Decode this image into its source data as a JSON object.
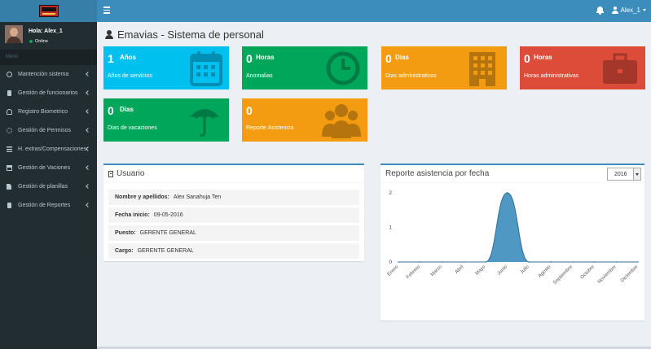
{
  "header": {
    "menu_toggle": "menu-toggle",
    "user_label": "Alex_1"
  },
  "sidebar": {
    "user_name": "Hola: Alex_1",
    "status": "Online",
    "menu_header": "Menú",
    "items": [
      {
        "label": "Mantención sistema",
        "icon": "wrench-icon"
      },
      {
        "label": "Gestión de funcionarios",
        "icon": "book-icon"
      },
      {
        "label": "Registro Biometrico",
        "icon": "fingerprint-icon"
      },
      {
        "label": "Gestión de Permisos",
        "icon": "cogs-icon"
      },
      {
        "label": "H. extras/Compensaciones",
        "icon": "list-icon"
      },
      {
        "label": "Gestión de Vaciones",
        "icon": "calendar-icon"
      },
      {
        "label": "Gestión de planillas",
        "icon": "file-icon"
      },
      {
        "label": "Gestión de Reportes",
        "icon": "book-icon"
      }
    ]
  },
  "page": {
    "title": "Emavias - Sistema de personal"
  },
  "info_boxes": [
    {
      "value": "1",
      "unit": "Años",
      "desc": "Años de servicios",
      "color": "#00c0ef",
      "icon": "calendar-icon"
    },
    {
      "value": "0",
      "unit": "Horas",
      "desc": "Anomalias",
      "color": "#00a65a",
      "icon": "clock-icon"
    },
    {
      "value": "0",
      "unit": "Dias",
      "desc": "Dias administrativos",
      "color": "#f39c12",
      "icon": "building-icon"
    },
    {
      "value": "0",
      "unit": "Horas",
      "desc": "Horas administrativas",
      "color": "#dd4b39",
      "icon": "briefcase-icon"
    },
    {
      "value": "0",
      "unit": "Dias",
      "desc": "Dias de vacaciones",
      "color": "#00a65a",
      "icon": "umbrella-icon"
    },
    {
      "value": "0",
      "unit": "",
      "desc": "Reporte Asistencia",
      "color": "#f39c12",
      "icon": "users-icon"
    }
  ],
  "usuario": {
    "title": "Usuario",
    "rows": [
      {
        "label": "Nombre y apellidos:",
        "value": "Alex Sanahuja Ten"
      },
      {
        "label": "Fecha inicio:",
        "value": "09-05-2016"
      },
      {
        "label": "Puesto:",
        "value": "GERENTE GENERAL"
      },
      {
        "label": "Cargo:",
        "value": "GERENTE GENERAL"
      }
    ]
  },
  "report": {
    "title": "Reporte asistencia por fecha",
    "year": "2016"
  },
  "chart_data": {
    "type": "area",
    "title": "",
    "xlabel": "",
    "ylabel": "",
    "categories": [
      "Enero",
      "Febrero",
      "Marzo",
      "Abril",
      "Mayo",
      "Junio",
      "Julio",
      "Agosto",
      "Septiembre",
      "Octubre",
      "Noviembre",
      "Diciembre"
    ],
    "values": [
      0,
      0,
      0,
      0,
      0,
      2,
      0,
      0,
      0,
      0,
      0,
      0
    ],
    "ylim": [
      0,
      2
    ],
    "yticks": [
      "0",
      "1",
      "2"
    ],
    "color": "#3c8dbc",
    "grid": false
  }
}
